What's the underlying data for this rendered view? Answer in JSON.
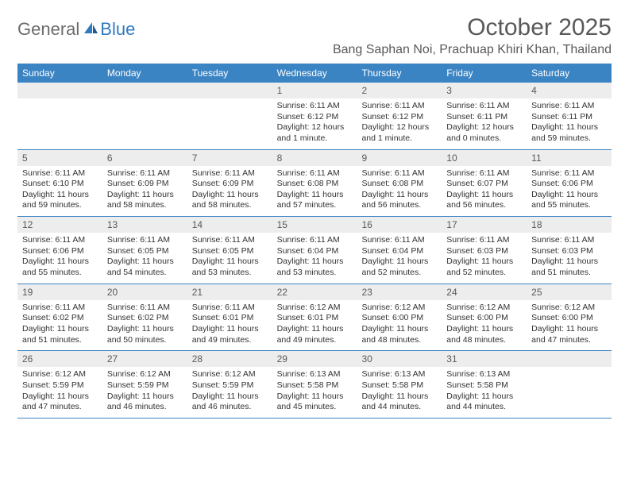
{
  "brand": {
    "text1": "General",
    "text2": "Blue"
  },
  "title": "October 2025",
  "location": "Bang Saphan Noi, Prachuap Khiri Khan, Thailand",
  "colors": {
    "header_bg": "#3b84c4",
    "header_text": "#ffffff",
    "daynum_bg": "#ededed",
    "daynum_text": "#595959",
    "body_text": "#333333",
    "rule": "#3b84c4",
    "title_text": "#595959"
  },
  "weekdays": [
    "Sunday",
    "Monday",
    "Tuesday",
    "Wednesday",
    "Thursday",
    "Friday",
    "Saturday"
  ],
  "weeks": [
    [
      {
        "n": "",
        "sr": "",
        "ss": "",
        "dl": ""
      },
      {
        "n": "",
        "sr": "",
        "ss": "",
        "dl": ""
      },
      {
        "n": "",
        "sr": "",
        "ss": "",
        "dl": ""
      },
      {
        "n": "1",
        "sr": "6:11 AM",
        "ss": "6:12 PM",
        "dl": "12 hours and 1 minute."
      },
      {
        "n": "2",
        "sr": "6:11 AM",
        "ss": "6:12 PM",
        "dl": "12 hours and 1 minute."
      },
      {
        "n": "3",
        "sr": "6:11 AM",
        "ss": "6:11 PM",
        "dl": "12 hours and 0 minutes."
      },
      {
        "n": "4",
        "sr": "6:11 AM",
        "ss": "6:11 PM",
        "dl": "11 hours and 59 minutes."
      }
    ],
    [
      {
        "n": "5",
        "sr": "6:11 AM",
        "ss": "6:10 PM",
        "dl": "11 hours and 59 minutes."
      },
      {
        "n": "6",
        "sr": "6:11 AM",
        "ss": "6:09 PM",
        "dl": "11 hours and 58 minutes."
      },
      {
        "n": "7",
        "sr": "6:11 AM",
        "ss": "6:09 PM",
        "dl": "11 hours and 58 minutes."
      },
      {
        "n": "8",
        "sr": "6:11 AM",
        "ss": "6:08 PM",
        "dl": "11 hours and 57 minutes."
      },
      {
        "n": "9",
        "sr": "6:11 AM",
        "ss": "6:08 PM",
        "dl": "11 hours and 56 minutes."
      },
      {
        "n": "10",
        "sr": "6:11 AM",
        "ss": "6:07 PM",
        "dl": "11 hours and 56 minutes."
      },
      {
        "n": "11",
        "sr": "6:11 AM",
        "ss": "6:06 PM",
        "dl": "11 hours and 55 minutes."
      }
    ],
    [
      {
        "n": "12",
        "sr": "6:11 AM",
        "ss": "6:06 PM",
        "dl": "11 hours and 55 minutes."
      },
      {
        "n": "13",
        "sr": "6:11 AM",
        "ss": "6:05 PM",
        "dl": "11 hours and 54 minutes."
      },
      {
        "n": "14",
        "sr": "6:11 AM",
        "ss": "6:05 PM",
        "dl": "11 hours and 53 minutes."
      },
      {
        "n": "15",
        "sr": "6:11 AM",
        "ss": "6:04 PM",
        "dl": "11 hours and 53 minutes."
      },
      {
        "n": "16",
        "sr": "6:11 AM",
        "ss": "6:04 PM",
        "dl": "11 hours and 52 minutes."
      },
      {
        "n": "17",
        "sr": "6:11 AM",
        "ss": "6:03 PM",
        "dl": "11 hours and 52 minutes."
      },
      {
        "n": "18",
        "sr": "6:11 AM",
        "ss": "6:03 PM",
        "dl": "11 hours and 51 minutes."
      }
    ],
    [
      {
        "n": "19",
        "sr": "6:11 AM",
        "ss": "6:02 PM",
        "dl": "11 hours and 51 minutes."
      },
      {
        "n": "20",
        "sr": "6:11 AM",
        "ss": "6:02 PM",
        "dl": "11 hours and 50 minutes."
      },
      {
        "n": "21",
        "sr": "6:11 AM",
        "ss": "6:01 PM",
        "dl": "11 hours and 49 minutes."
      },
      {
        "n": "22",
        "sr": "6:12 AM",
        "ss": "6:01 PM",
        "dl": "11 hours and 49 minutes."
      },
      {
        "n": "23",
        "sr": "6:12 AM",
        "ss": "6:00 PM",
        "dl": "11 hours and 48 minutes."
      },
      {
        "n": "24",
        "sr": "6:12 AM",
        "ss": "6:00 PM",
        "dl": "11 hours and 48 minutes."
      },
      {
        "n": "25",
        "sr": "6:12 AM",
        "ss": "6:00 PM",
        "dl": "11 hours and 47 minutes."
      }
    ],
    [
      {
        "n": "26",
        "sr": "6:12 AM",
        "ss": "5:59 PM",
        "dl": "11 hours and 47 minutes."
      },
      {
        "n": "27",
        "sr": "6:12 AM",
        "ss": "5:59 PM",
        "dl": "11 hours and 46 minutes."
      },
      {
        "n": "28",
        "sr": "6:12 AM",
        "ss": "5:59 PM",
        "dl": "11 hours and 46 minutes."
      },
      {
        "n": "29",
        "sr": "6:13 AM",
        "ss": "5:58 PM",
        "dl": "11 hours and 45 minutes."
      },
      {
        "n": "30",
        "sr": "6:13 AM",
        "ss": "5:58 PM",
        "dl": "11 hours and 44 minutes."
      },
      {
        "n": "31",
        "sr": "6:13 AM",
        "ss": "5:58 PM",
        "dl": "11 hours and 44 minutes."
      },
      {
        "n": "",
        "sr": "",
        "ss": "",
        "dl": ""
      }
    ]
  ],
  "labels": {
    "sunrise": "Sunrise:",
    "sunset": "Sunset:",
    "daylight": "Daylight:"
  }
}
